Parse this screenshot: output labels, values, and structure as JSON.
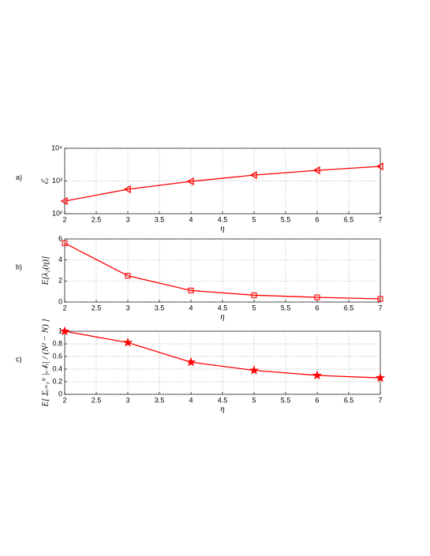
{
  "chart_data": [
    {
      "type": "line",
      "panel_label": "a)",
      "xlabel": "η",
      "ylabel": "ℰᵣ",
      "x": [
        2,
        3,
        4,
        5,
        6,
        7
      ],
      "series": [
        {
          "color": "#ff0000",
          "marker": "triangle-left",
          "values": [
            243,
            558,
            973,
            1515,
            2115,
            2790
          ]
        }
      ],
      "xlim": [
        2,
        7
      ],
      "xticks": [
        2,
        2.5,
        3,
        3.5,
        4,
        4.5,
        5,
        5.5,
        6,
        6.5,
        7
      ],
      "ylim": [
        100,
        10000
      ],
      "yscale": "log",
      "yticks": [
        {
          "value": 100,
          "label": "10²"
        },
        {
          "value": 1000,
          "label": "10³"
        },
        {
          "value": 10000,
          "label": "10⁴"
        }
      ],
      "grid": true
    },
    {
      "type": "line",
      "panel_label": "b)",
      "xlabel": "η",
      "ylabel": "E[λ₂(η)]",
      "x": [
        2,
        3,
        4,
        5,
        6,
        7
      ],
      "series": [
        {
          "color": "#ff0000",
          "marker": "square",
          "values": [
            5.6,
            2.5,
            1.1,
            0.65,
            0.45,
            0.3
          ]
        }
      ],
      "xlim": [
        2,
        7
      ],
      "xticks": [
        2,
        2.5,
        3,
        3.5,
        4,
        4.5,
        5,
        5.5,
        6,
        6.5,
        7
      ],
      "ylim": [
        0,
        6
      ],
      "yticks": [
        0,
        2,
        4,
        6
      ],
      "grid": true
    },
    {
      "type": "line",
      "panel_label": "c)",
      "xlabel": "η",
      "ylabel": "E[ Σᵢ₌₁ᴺ |𝒩ᵢ| / (N² − N) ]",
      "x": [
        2,
        3,
        4,
        5,
        6,
        7
      ],
      "series": [
        {
          "color": "#ff0000",
          "marker": "star",
          "values": [
            1.0,
            0.82,
            0.51,
            0.38,
            0.3,
            0.26
          ]
        }
      ],
      "xlim": [
        2,
        7
      ],
      "xticks": [
        2,
        2.5,
        3,
        3.5,
        4,
        4.5,
        5,
        5.5,
        6,
        6.5,
        7
      ],
      "ylim": [
        0,
        1
      ],
      "yticks": [
        0,
        0.2,
        0.4,
        0.6,
        0.8,
        1
      ],
      "grid": true
    }
  ]
}
